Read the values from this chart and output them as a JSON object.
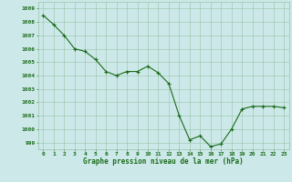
{
  "x": [
    0,
    1,
    2,
    3,
    4,
    5,
    6,
    7,
    8,
    9,
    10,
    11,
    12,
    13,
    14,
    15,
    16,
    17,
    18,
    19,
    20,
    21,
    22,
    23
  ],
  "y": [
    1008.5,
    1007.8,
    1007.0,
    1006.0,
    1005.8,
    1005.2,
    1004.3,
    1004.0,
    1004.3,
    1004.3,
    1004.7,
    1004.2,
    1003.4,
    1001.0,
    999.2,
    999.5,
    998.7,
    998.9,
    1000.0,
    1001.5,
    1001.7,
    1001.7,
    1001.7,
    1001.6
  ],
  "line_color": "#1a6b1a",
  "marker_color": "#1a6b1a",
  "bg_color": "#cce8e8",
  "grid_color": "#99c4aa",
  "xlabel": "Graphe pression niveau de la mer (hPa)",
  "xlabel_color": "#1a6b1a",
  "tick_color": "#1a6b1a",
  "ylim": [
    998.5,
    1009.5
  ],
  "xlim": [
    -0.5,
    23.5
  ],
  "yticks": [
    999,
    1000,
    1001,
    1002,
    1003,
    1004,
    1005,
    1006,
    1007,
    1008,
    1009
  ],
  "xticks": [
    0,
    1,
    2,
    3,
    4,
    5,
    6,
    7,
    8,
    9,
    10,
    11,
    12,
    13,
    14,
    15,
    16,
    17,
    18,
    19,
    20,
    21,
    22,
    23
  ]
}
